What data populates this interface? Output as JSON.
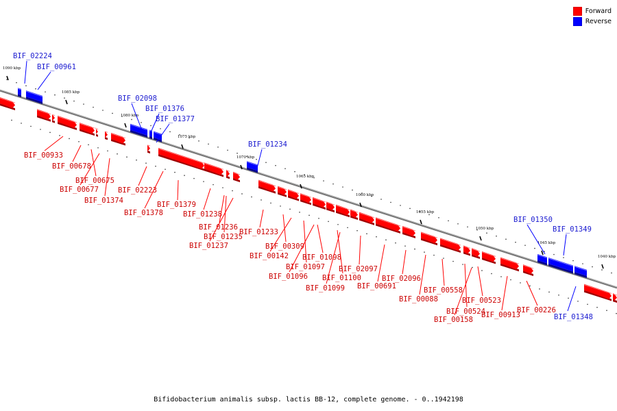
{
  "legend": {
    "forward_label": "Forward",
    "reverse_label": "Reverse",
    "forward_color": "#ff0000",
    "reverse_color": "#0000ff"
  },
  "caption": "Bifidobacterium animalis subsp. lactis BB-12, complete genome. - 0..1942198",
  "scale_labels": [
    "1090 kbp",
    "1085 kbp",
    "1080 kbp",
    "1075 kbp",
    "1070 kbp",
    "1065 kbp",
    "1060 kbp",
    "1055 kbp",
    "1050 kbp",
    "1045 kbp",
    "1040 kbp"
  ],
  "genes_forward": [
    "BIF_00933",
    "BIF_00678",
    "BIF_00675",
    "BIF_00677",
    "BIF_01374",
    "BIF_02223",
    "BIF_01378",
    "BIF_01379",
    "BIF_01238",
    "BIF_01236",
    "BIF_01235",
    "BIF_01237",
    "BIF_01233",
    "BIF_00309",
    "BIF_00142",
    "BIF_01097",
    "BIF_01098",
    "BIF_01096",
    "BIF_01100",
    "BIF_02097",
    "BIF_01099",
    "BIF_00691",
    "BIF_02096",
    "BIF_00088",
    "BIF_00558",
    "BIF_00524",
    "BIF_00523",
    "BIF_00158",
    "BIF_00913",
    "BIF_00226"
  ],
  "genes_reverse": [
    "BIF_02224",
    "BIF_00961",
    "BIF_02098",
    "BIF_01376",
    "BIF_01377",
    "BIF_01234",
    "BIF_01350",
    "BIF_01349",
    "BIF_01348"
  ]
}
